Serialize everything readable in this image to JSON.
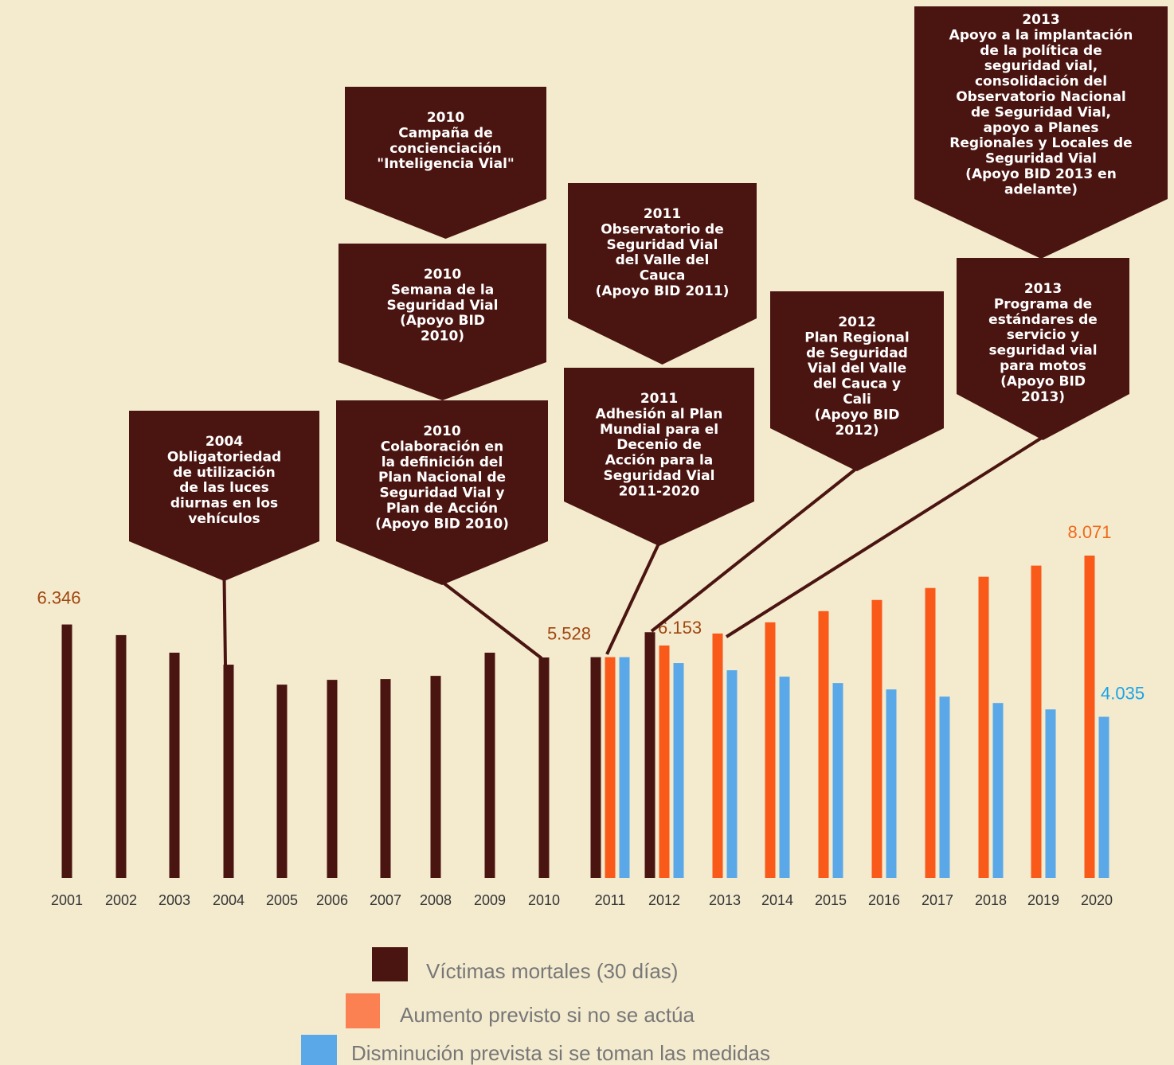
{
  "chart_data": {
    "type": "bar",
    "categories": [
      "2001",
      "2002",
      "2003",
      "2004",
      "2005",
      "2006",
      "2007",
      "2008",
      "2009",
      "2010",
      "2011",
      "2012",
      "2013",
      "2014",
      "2015",
      "2016",
      "2017",
      "2018",
      "2019",
      "2020"
    ],
    "series": [
      {
        "name": "Víctimas mortales (30 días)",
        "color": "#4a1410",
        "values": [
          6346,
          6080,
          5640,
          5340,
          4840,
          4960,
          4980,
          5060,
          5640,
          5520,
          5528,
          6153,
          null,
          null,
          null,
          null,
          null,
          null,
          null,
          null
        ],
        "value_labels": [
          "6.346",
          null,
          null,
          null,
          null,
          null,
          null,
          null,
          null,
          null,
          "5.528",
          "6.153",
          null,
          null,
          null,
          null,
          null,
          null,
          null,
          null
        ]
      },
      {
        "name": "Aumento previsto si no se actúa",
        "color": "#f95a1a",
        "values": [
          null,
          null,
          null,
          null,
          null,
          null,
          null,
          null,
          null,
          null,
          5528,
          5820,
          6120,
          6400,
          6680,
          6960,
          7260,
          7540,
          7820,
          8071
        ],
        "value_labels": [
          null,
          null,
          null,
          null,
          null,
          null,
          null,
          null,
          null,
          null,
          null,
          null,
          null,
          null,
          null,
          null,
          null,
          null,
          null,
          "8.071"
        ]
      },
      {
        "name": "Disminución prevista si se toman las medidas",
        "color": "#5aa8e8",
        "values": [
          null,
          null,
          null,
          null,
          null,
          null,
          null,
          null,
          null,
          null,
          5528,
          5380,
          5200,
          5040,
          4880,
          4720,
          4540,
          4380,
          4220,
          4035
        ],
        "value_labels": [
          null,
          null,
          null,
          null,
          null,
          null,
          null,
          null,
          null,
          null,
          null,
          null,
          null,
          null,
          null,
          null,
          null,
          null,
          null,
          "4.035"
        ]
      }
    ],
    "ylim": [
      0,
      8071
    ],
    "annotations": [
      {
        "lines": [
          "2004",
          "Obligatoriedad",
          "de utilización",
          "de las luces",
          "diurnas en los",
          "vehículos"
        ]
      },
      {
        "lines": [
          "2010",
          "Colaboración en",
          "la definición del",
          "Plan Nacional de",
          "Seguridad Vial y",
          "Plan de Acción",
          "(Apoyo BID 2010)"
        ]
      },
      {
        "lines": [
          "2010",
          "Semana de la",
          "Seguridad Vial",
          "(Apoyo BID",
          "2010)"
        ]
      },
      {
        "lines": [
          "2010",
          "Campaña de",
          "concienciación",
          "\"Inteligencia Vial\""
        ]
      },
      {
        "lines": [
          "2011",
          "Observatorio de",
          "Seguridad Vial",
          "del Valle del",
          "Cauca",
          "(Apoyo BID 2011)"
        ]
      },
      {
        "lines": [
          "2011",
          "Adhesión al Plan",
          "Mundial para el",
          "Decenio de",
          "Acción para la",
          "Seguridad Vial",
          "2011-2020"
        ]
      },
      {
        "lines": [
          "2012",
          "Plan Regional",
          "de Seguridad",
          "Vial del Valle",
          "del Cauca y",
          "Cali",
          "(Apoyo BID",
          "2012)"
        ]
      },
      {
        "lines": [
          "2013",
          "Programa de",
          "estándares de",
          "servicio y",
          "seguridad vial",
          "para motos",
          "(Apoyo BID",
          "2013)"
        ]
      },
      {
        "lines": [
          "2013",
          "Apoyo a la implantación",
          "de la política de",
          "seguridad vial,",
          "consolidación del",
          "Observatorio Nacional",
          "de Seguridad Vial,",
          "apoyo a Planes",
          "Regionales y Locales de",
          "Seguridad Vial",
          "(Apoyo BID 2013 en",
          "adelante)"
        ]
      }
    ]
  }
}
